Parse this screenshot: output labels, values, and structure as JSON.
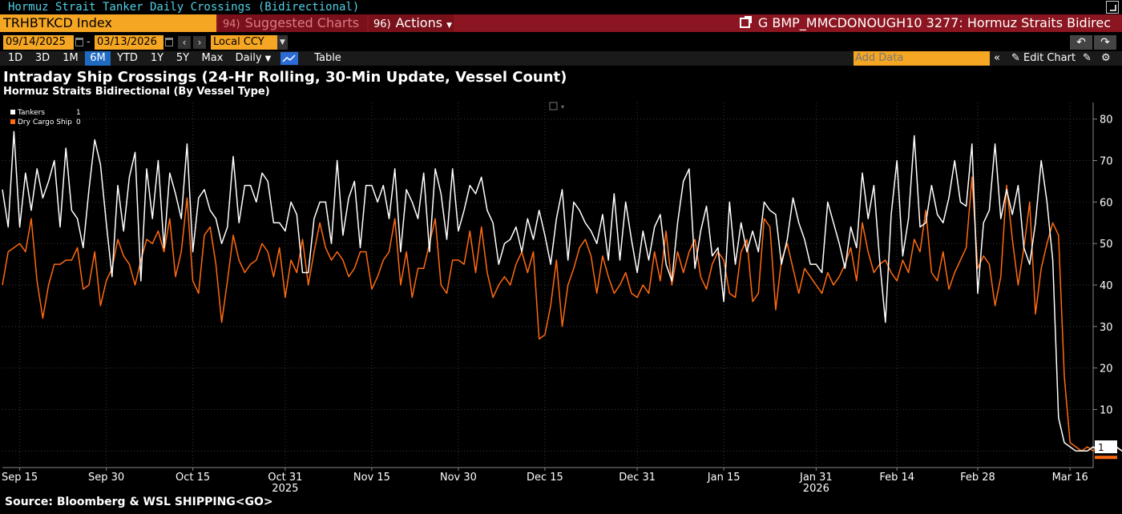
{
  "window": {
    "title": "Hormuz Strait Tanker Daily Crossings (Bidirectional)"
  },
  "command": {
    "ticker": "TRHBTKCD Index",
    "suggested_num": "94)",
    "suggested_label": "Suggested Charts",
    "actions_num": "96)",
    "actions_label": "Actions",
    "chart_ref": "G BMP_MMCDONOUGH10 3277: Hormuz Straits Bidirec"
  },
  "dates": {
    "start": "09/14/2025",
    "separator": "-",
    "end": "03/13/2026",
    "currency": "Local CCY"
  },
  "ranges": [
    "1D",
    "3D",
    "1M",
    "6M",
    "YTD",
    "1Y",
    "5Y",
    "Max"
  ],
  "active_range": "6M",
  "frequency": "Daily",
  "table_label": "Table",
  "add_data_placeholder": "Add Data",
  "edit_chart_label": "Edit Chart",
  "footer": {
    "source": "Source: Bloomberg & WSL SHIPPING<GO>"
  },
  "colors": {
    "tankers": "#ffffff",
    "dry_cargo": "#ff6a10",
    "accent": "#f5a623",
    "command_bar": "#8b1520"
  },
  "chart_data": {
    "type": "line",
    "title": "Intraday Ship Crossings (24-Hr Rolling, 30-Min Update, Vessel Count)",
    "subtitle": "Hormuz Straits Bidirectional (By Vessel Type)",
    "x_start": "2025-09-12",
    "x_end": "2026-03-20",
    "ylim": [
      -4,
      84
    ],
    "y_ticks": [
      10,
      20,
      30,
      40,
      50,
      60,
      70,
      80
    ],
    "grid": true,
    "legend_position": "top-left",
    "x_tick_labels": [
      {
        "date": "2025-09-15",
        "label": "Sep 15"
      },
      {
        "date": "2025-09-30",
        "label": "Sep 30"
      },
      {
        "date": "2025-10-15",
        "label": "Oct 15"
      },
      {
        "date": "2025-10-31",
        "label": "Oct 31"
      },
      {
        "date": "2025-11-15",
        "label": "Nov 15"
      },
      {
        "date": "2025-11-30",
        "label": "Nov 30"
      },
      {
        "date": "2025-12-15",
        "label": "Dec 15"
      },
      {
        "date": "2025-12-31",
        "label": "Dec 31"
      },
      {
        "date": "2026-01-15",
        "label": "Jan 15"
      },
      {
        "date": "2026-01-31",
        "label": "Jan 31"
      },
      {
        "date": "2026-02-14",
        "label": "Feb 14"
      },
      {
        "date": "2026-02-28",
        "label": "Feb 28"
      },
      {
        "date": "2026-03-16",
        "label": "Mar 16"
      }
    ],
    "year_labels": [
      {
        "date": "2025-10-31",
        "label": "2025"
      },
      {
        "date": "2026-01-31",
        "label": "2026"
      }
    ],
    "series": [
      {
        "name": "Tankers",
        "last_value": "1",
        "color": "#ffffff",
        "start": "2025-09-12",
        "values": [
          63,
          54,
          77,
          54,
          67,
          58,
          68,
          61,
          65,
          70,
          54,
          73,
          58,
          56,
          49,
          63,
          75,
          69,
          55,
          42,
          64,
          53,
          66,
          72,
          41,
          68,
          56,
          70,
          49,
          67,
          62,
          56,
          74,
          48,
          61,
          63,
          58,
          56,
          50,
          54,
          71,
          55,
          64,
          64,
          60,
          67,
          65,
          55,
          55,
          53,
          60,
          57,
          43,
          43,
          56,
          60,
          60,
          50,
          70,
          52,
          61,
          65,
          49,
          64,
          64,
          60,
          64,
          56,
          68,
          48,
          63,
          60,
          56,
          67,
          48,
          68,
          62,
          51,
          68,
          53,
          58,
          64,
          62,
          66,
          58,
          55,
          45,
          50,
          51,
          54,
          48,
          56,
          51,
          58,
          52,
          45,
          56,
          63,
          46,
          60,
          58,
          55,
          53,
          50,
          57,
          46,
          62,
          46,
          60,
          51,
          43,
          53,
          46,
          54,
          57,
          45,
          41,
          55,
          65,
          68,
          44,
          53,
          59,
          47,
          49,
          36,
          60,
          45,
          55,
          48,
          53,
          48,
          60,
          58,
          57,
          45,
          51,
          61,
          55,
          51,
          45,
          45,
          43,
          60,
          55,
          50,
          44,
          54,
          49,
          67,
          56,
          64,
          46,
          31,
          57,
          70,
          47,
          56,
          76,
          54,
          55,
          64,
          57,
          55,
          61,
          70,
          60,
          59,
          74,
          38,
          55,
          58,
          74,
          56,
          63,
          57,
          64,
          49,
          45,
          55,
          70,
          60,
          46,
          8,
          2,
          1,
          0,
          0,
          0,
          1,
          0,
          1,
          0,
          1,
          0,
          1,
          1,
          1
        ]
      },
      {
        "name": "Dry Cargo Ship",
        "last_value": "0",
        "color": "#ff6a10",
        "start": "2025-09-12",
        "values": [
          40,
          48,
          49,
          50,
          48,
          56,
          41,
          32,
          40,
          45,
          45,
          46,
          46,
          49,
          39,
          40,
          48,
          35,
          41,
          44,
          51,
          47,
          45,
          40,
          46,
          51,
          50,
          53,
          48,
          56,
          42,
          48,
          61,
          41,
          38,
          52,
          54,
          45,
          31,
          41,
          52,
          46,
          43,
          45,
          46,
          50,
          48,
          42,
          49,
          37,
          46,
          43,
          51,
          40,
          48,
          55,
          49,
          46,
          48,
          46,
          42,
          44,
          48,
          48,
          39,
          42,
          46,
          48,
          56,
          40,
          48,
          37,
          44,
          44,
          50,
          56,
          40,
          38,
          46,
          46,
          45,
          53,
          43,
          54,
          43,
          37,
          40,
          42,
          40,
          45,
          48,
          43,
          48,
          27,
          28,
          35,
          46,
          30,
          40,
          44,
          49,
          51,
          47,
          38,
          47,
          42,
          38,
          40,
          43,
          38,
          37,
          40,
          38,
          48,
          41,
          53,
          40,
          48,
          43,
          48,
          51,
          42,
          39,
          45,
          48,
          46,
          38,
          37,
          48,
          51,
          36,
          38,
          56,
          54,
          34,
          46,
          50,
          44,
          38,
          44,
          42,
          40,
          38,
          43,
          40,
          42,
          45,
          49,
          41,
          55,
          48,
          43,
          45,
          46,
          43,
          41,
          46,
          43,
          51,
          48,
          58,
          43,
          41,
          48,
          39,
          43,
          46,
          49,
          66,
          44,
          47,
          45,
          35,
          42,
          64,
          51,
          40,
          49,
          60,
          33,
          44,
          50,
          55,
          52,
          18,
          2,
          1,
          0,
          1,
          0,
          1,
          2,
          0,
          1,
          0,
          1,
          0,
          0,
          0
        ]
      }
    ]
  }
}
